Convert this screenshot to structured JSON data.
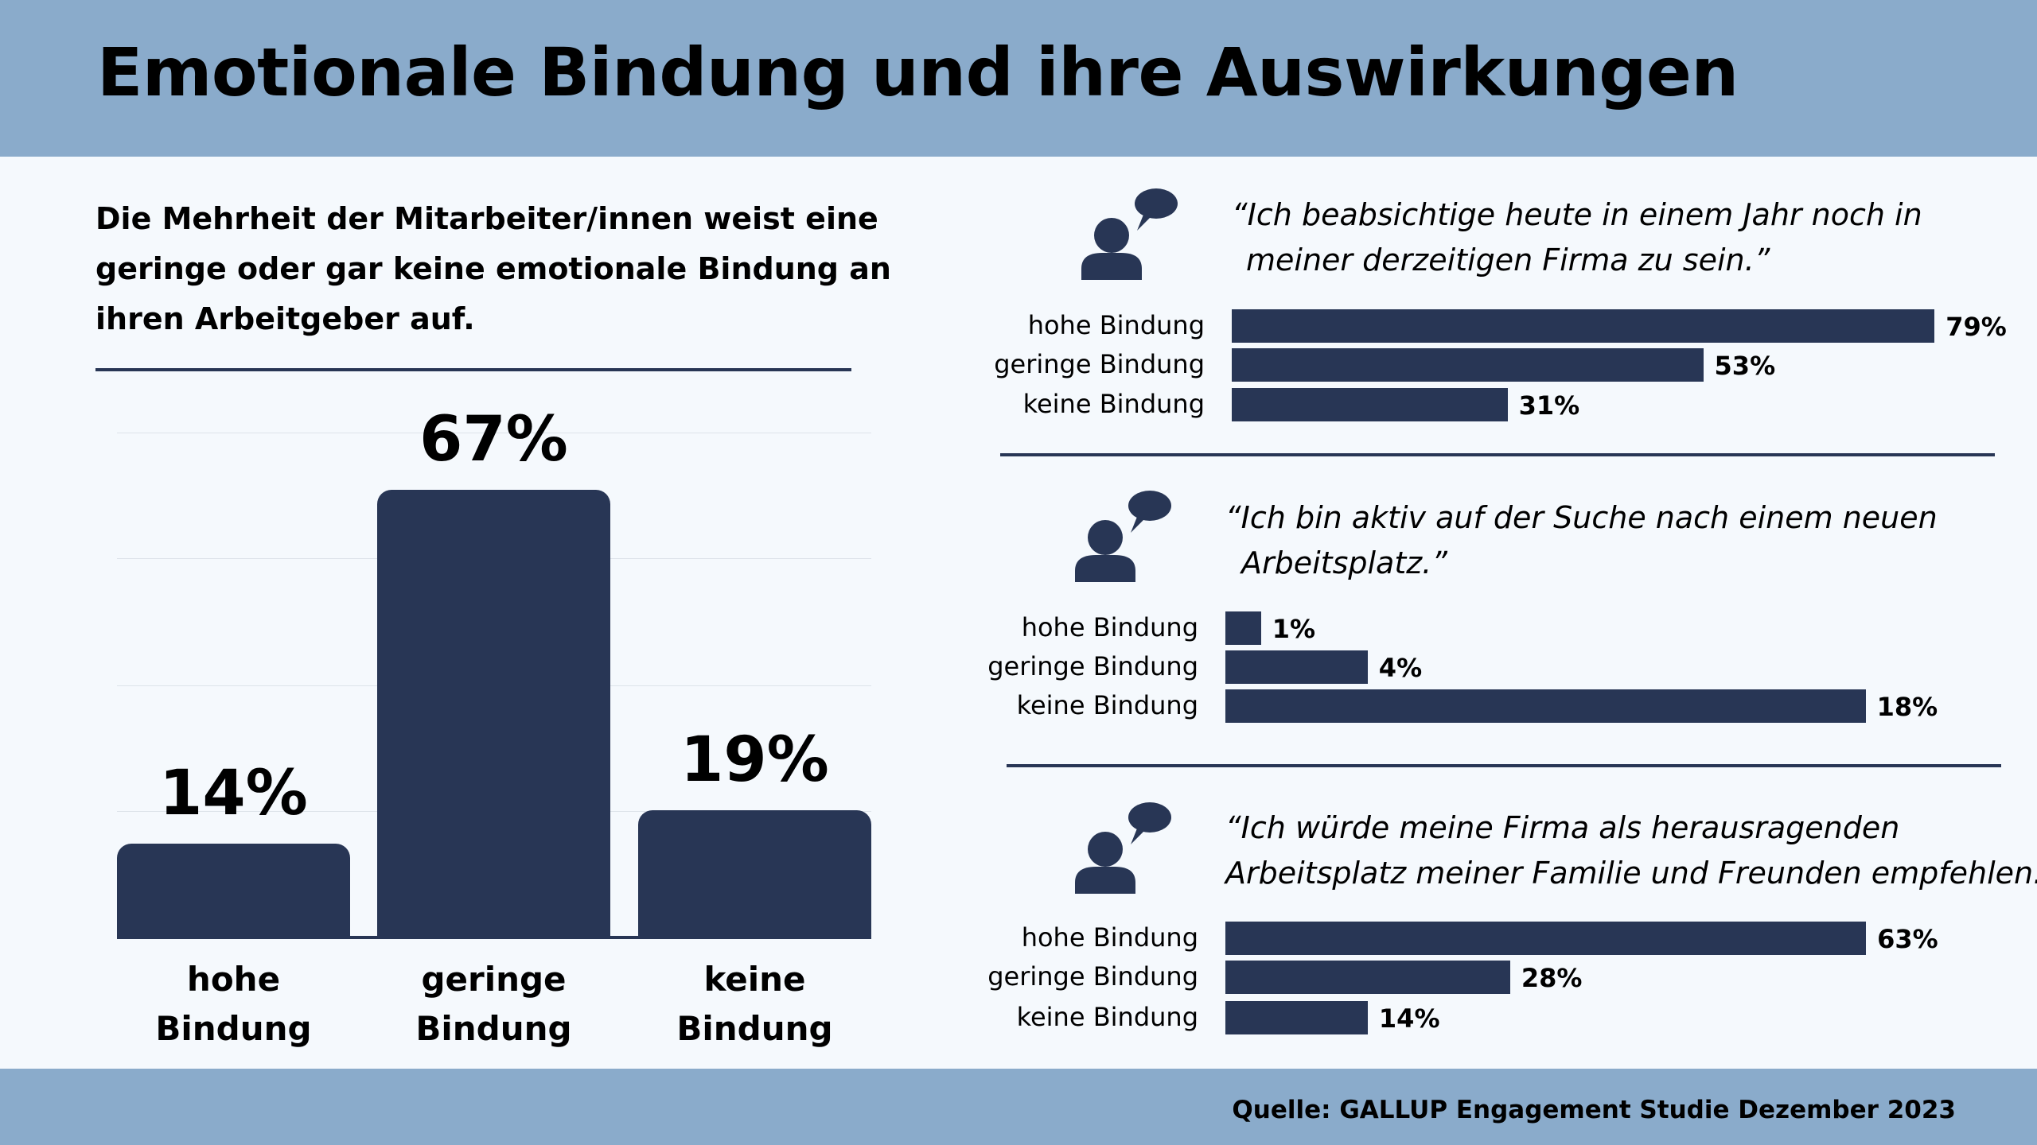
{
  "header": {
    "title": "Emotionale Bindung und ihre Auswirkungen"
  },
  "intro": "Die Mehrheit der Mitarbeiter/innen weist eine geringe oder gar keine emotionale Bindung an ihren Arbeitgeber auf.",
  "footer": {
    "source": "Quelle: GALLUP Engagement Studie Dezember 2023"
  },
  "colors": {
    "header_bg": "#8aabcb",
    "bar": "#283655",
    "background": "#f5f9fd"
  },
  "chart_data": [
    {
      "type": "bar",
      "title": "",
      "categories": [
        [
          "hohe",
          "Bindung"
        ],
        [
          "geringe",
          "Bindung"
        ],
        [
          "keine",
          "Bindung"
        ]
      ],
      "values": [
        14,
        67,
        19
      ],
      "value_labels": [
        "14%",
        "67%",
        "19%"
      ],
      "unit": "%",
      "grid": true
    },
    {
      "type": "bar",
      "orientation": "horizontal",
      "icon": "person-speech-bubble-icon",
      "quote_lines": [
        "“Ich beabsichtige heute in einem Jahr noch in",
        "meiner derzeitigen Firma zu sein.”"
      ],
      "categories": [
        "hohe Bindung",
        "geringe Bindung",
        "keine Bindung"
      ],
      "values": [
        79,
        53,
        31
      ],
      "value_labels": [
        "79%",
        "53%",
        "31%"
      ]
    },
    {
      "type": "bar",
      "orientation": "horizontal",
      "icon": "person-speech-bubble-icon",
      "quote_lines": [
        "“Ich bin aktiv auf der Suche nach einem neuen",
        "Arbeitsplatz.”"
      ],
      "categories": [
        "hohe Bindung",
        "geringe Bindung",
        "keine Bindung"
      ],
      "values": [
        1,
        4,
        18
      ],
      "value_labels": [
        "1%",
        "4%",
        "18%"
      ]
    },
    {
      "type": "bar",
      "orientation": "horizontal",
      "icon": "person-speech-bubble-icon",
      "quote_lines": [
        "“Ich würde meine Firma als herausragenden",
        "Arbeitsplatz meiner Familie und Freunden empfehlen.”"
      ],
      "categories": [
        "hohe Bindung",
        "geringe Bindung",
        "keine Bindung"
      ],
      "values": [
        63,
        28,
        14
      ],
      "value_labels": [
        "63%",
        "28%",
        "14%"
      ]
    }
  ]
}
